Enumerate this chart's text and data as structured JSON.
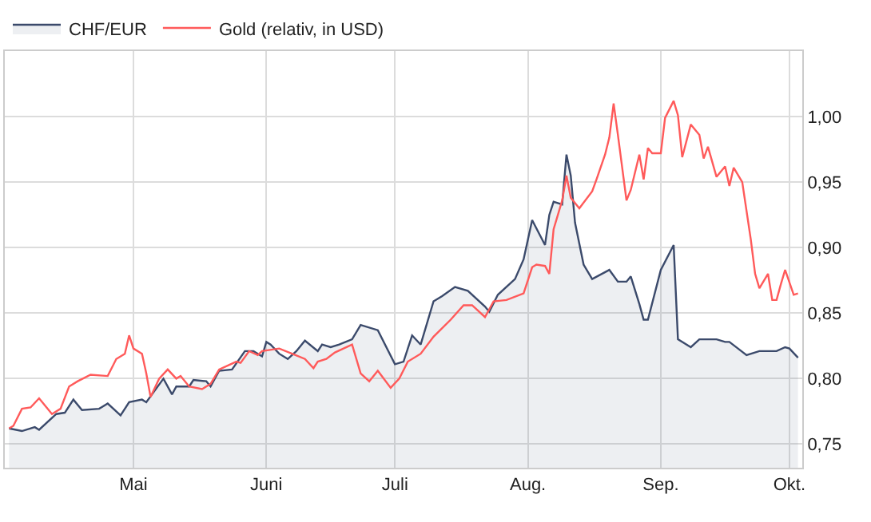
{
  "chart_data": {
    "type": "line",
    "xlim": [
      "--04-01",
      "--10-04"
    ],
    "ylim": [
      0.732,
      1.05
    ],
    "xticks": [
      {
        "value": "--05-01",
        "label": "Mai"
      },
      {
        "value": "--06-01",
        "label": "Juni"
      },
      {
        "value": "--07-01",
        "label": "Juli"
      },
      {
        "value": "--08-01",
        "label": "Aug."
      },
      {
        "value": "--09-01",
        "label": "Sep."
      },
      {
        "value": "--10-01",
        "label": "Okt."
      }
    ],
    "yticks": [
      {
        "value": 0.75,
        "label": "0,75"
      },
      {
        "value": 0.8,
        "label": "0,80"
      },
      {
        "value": 0.85,
        "label": "0,85"
      },
      {
        "value": 0.9,
        "label": "0,90"
      },
      {
        "value": 0.95,
        "label": "0,95"
      },
      {
        "value": 1.0,
        "label": "1,00"
      }
    ],
    "grid": true,
    "legend": "top left",
    "marker": "none",
    "line_style": "solid",
    "series": [
      {
        "name": "CHF/EUR",
        "type": "area",
        "color": "#3b4a6b",
        "x": [
          "--04-02",
          "--04-05",
          "--04-08",
          "--04-09",
          "--04-13",
          "--04-15",
          "--04-17",
          "--04-19",
          "--04-23",
          "--04-25",
          "--04-28",
          "--04-30",
          "--05-03",
          "--05-04",
          "--05-08",
          "--05-10",
          "--05-11",
          "--05-14",
          "--05-15",
          "--05-18",
          "--05-19",
          "--05-21",
          "--05-24",
          "--05-27",
          "--05-29",
          "--05-31",
          "--06-01",
          "--06-02",
          "--06-04",
          "--06-06",
          "--06-08",
          "--06-10",
          "--06-13",
          "--06-14",
          "--06-16",
          "--06-18",
          "--06-21",
          "--06-23",
          "--06-27",
          "--07-01",
          "--07-03",
          "--07-05",
          "--07-07",
          "--07-10",
          "--07-12",
          "--07-15",
          "--07-18",
          "--07-22",
          "--07-23",
          "--07-25",
          "--07-29",
          "--07-31",
          "--08-02",
          "--08-05",
          "--08-06",
          "--08-07",
          "--08-09",
          "--08-10",
          "--08-11",
          "--08-12",
          "--08-14",
          "--08-16",
          "--08-20",
          "--08-22",
          "--08-24",
          "--08-25",
          "--08-27",
          "--08-28",
          "--08-29",
          "--09-01",
          "--09-04",
          "--09-05",
          "--09-08",
          "--09-10",
          "--09-14",
          "--09-16",
          "--09-17",
          "--09-19",
          "--09-21",
          "--09-24",
          "--09-28",
          "--09-30",
          "--10-01",
          "--10-03"
        ],
        "values": [
          0.762,
          0.76,
          0.763,
          0.761,
          0.773,
          0.774,
          0.784,
          0.776,
          0.777,
          0.781,
          0.772,
          0.782,
          0.784,
          0.782,
          0.8,
          0.788,
          0.794,
          0.794,
          0.799,
          0.798,
          0.794,
          0.806,
          0.807,
          0.821,
          0.821,
          0.817,
          0.828,
          0.826,
          0.819,
          0.815,
          0.821,
          0.829,
          0.821,
          0.826,
          0.824,
          0.826,
          0.83,
          0.841,
          0.837,
          0.811,
          0.813,
          0.833,
          0.826,
          0.859,
          0.863,
          0.87,
          0.867,
          0.855,
          0.851,
          0.864,
          0.876,
          0.891,
          0.921,
          0.902,
          0.925,
          0.935,
          0.933,
          0.971,
          0.955,
          0.919,
          0.887,
          0.876,
          0.883,
          0.874,
          0.874,
          0.878,
          0.857,
          0.845,
          0.845,
          0.883,
          0.902,
          0.83,
          0.824,
          0.83,
          0.83,
          0.828,
          0.828,
          0.823,
          0.818,
          0.821,
          0.821,
          0.824,
          0.823,
          0.816
        ]
      },
      {
        "name": "Gold (relativ, in USD)",
        "color": "#ff5a5a",
        "x": [
          "--04-02",
          "--04-03",
          "--04-05",
          "--04-07",
          "--04-09",
          "--04-12",
          "--04-14",
          "--04-16",
          "--04-18",
          "--04-21",
          "--04-25",
          "--04-27",
          "--04-29",
          "--04-30",
          "--05-01",
          "--05-03",
          "--05-04",
          "--05-05",
          "--05-07",
          "--05-09",
          "--05-11",
          "--05-12",
          "--05-14",
          "--05-17",
          "--05-19",
          "--05-21",
          "--05-25",
          "--05-26",
          "--05-28",
          "--05-30",
          "--05-31",
          "--06-04",
          "--06-07",
          "--06-10",
          "--06-12",
          "--06-13",
          "--06-15",
          "--06-17",
          "--06-21",
          "--06-23",
          "--06-25",
          "--06-27",
          "--06-30",
          "--07-02",
          "--07-04",
          "--07-07",
          "--07-10",
          "--07-14",
          "--07-17",
          "--07-19",
          "--07-22",
          "--07-24",
          "--07-27",
          "--07-31",
          "--08-02",
          "--08-03",
          "--08-05",
          "--08-06",
          "--08-07",
          "--08-09",
          "--08-10",
          "--08-11",
          "--08-13",
          "--08-16",
          "--08-17",
          "--08-19",
          "--08-20",
          "--08-21",
          "--08-22",
          "--08-24",
          "--08-25",
          "--08-27",
          "--08-28",
          "--08-29",
          "--08-30",
          "--09-01",
          "--09-02",
          "--09-04",
          "--09-05",
          "--09-06",
          "--09-08",
          "--09-10",
          "--09-11",
          "--09-12",
          "--09-14",
          "--09-16",
          "--09-17",
          "--09-18",
          "--09-20",
          "--09-22",
          "--09-23",
          "--09-24",
          "--09-26",
          "--09-27",
          "--09-28",
          "--09-29",
          "--09-30",
          "--10-02",
          "--10-03"
        ],
        "values": [
          0.762,
          0.764,
          0.777,
          0.778,
          0.785,
          0.773,
          0.777,
          0.794,
          0.798,
          0.803,
          0.802,
          0.815,
          0.819,
          0.833,
          0.823,
          0.819,
          0.804,
          0.786,
          0.8,
          0.807,
          0.8,
          0.802,
          0.794,
          0.792,
          0.796,
          0.807,
          0.813,
          0.812,
          0.821,
          0.818,
          0.821,
          0.823,
          0.819,
          0.815,
          0.808,
          0.813,
          0.815,
          0.82,
          0.826,
          0.804,
          0.798,
          0.806,
          0.793,
          0.8,
          0.813,
          0.819,
          0.832,
          0.845,
          0.856,
          0.856,
          0.847,
          0.859,
          0.86,
          0.865,
          0.885,
          0.887,
          0.886,
          0.88,
          0.914,
          0.936,
          0.955,
          0.938,
          0.93,
          0.943,
          0.952,
          0.971,
          0.984,
          1.01,
          0.986,
          0.936,
          0.944,
          0.971,
          0.952,
          0.976,
          0.972,
          0.972,
          0.999,
          1.012,
          1.001,
          0.969,
          0.994,
          0.986,
          0.968,
          0.977,
          0.954,
          0.962,
          0.947,
          0.961,
          0.95,
          0.906,
          0.88,
          0.869,
          0.88,
          0.86,
          0.86,
          0.872,
          0.883,
          0.864,
          0.865
        ]
      }
    ]
  }
}
